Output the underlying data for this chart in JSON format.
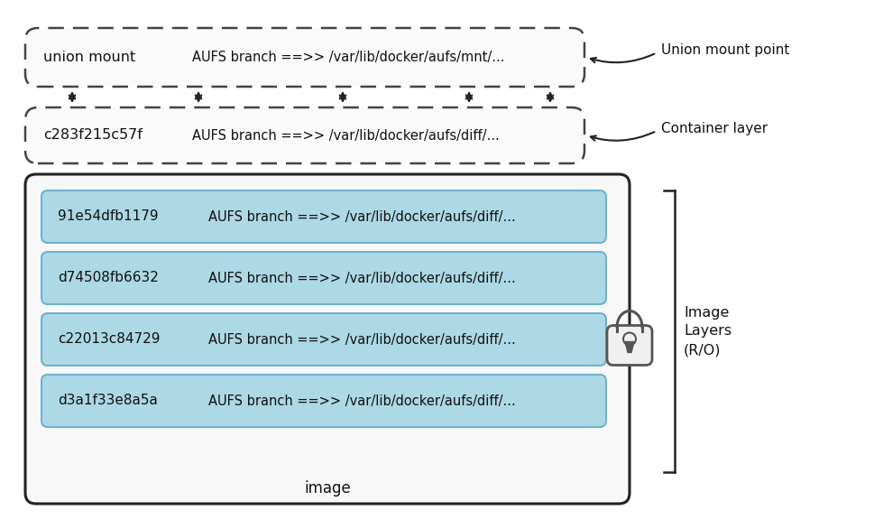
{
  "bg_color": "#ffffff",
  "union_mount_label": "union mount",
  "union_mount_path": "AUFS branch ==>> /var/lib/docker/aufs/mnt/...",
  "union_mount_point_label": "Union mount point",
  "container_id": "c283f215c57f",
  "container_path": "AUFS branch ==>> /var/lib/docker/aufs/diff/...",
  "container_layer_label": "Container layer",
  "image_layers": [
    {
      "id": "91e54dfb1179",
      "path": "AUFS branch ==>> /var/lib/docker/aufs/diff/..."
    },
    {
      "id": "d74508fb6632",
      "path": "AUFS branch ==>> /var/lib/docker/aufs/diff/..."
    },
    {
      "id": "c22013c84729",
      "path": "AUFS branch ==>> /var/lib/docker/aufs/diff/..."
    },
    {
      "id": "d3a1f33e8a5a",
      "path": "AUFS branch ==>> /var/lib/docker/aufs/diff/..."
    }
  ],
  "image_label": "image",
  "image_layers_label": "Image\nLayers\n(R/O)",
  "layer_fill_color": "#add8e6",
  "layer_edge_color": "#6ab0cc",
  "outer_box_color": "#222222",
  "dashed_box_color": "#444444",
  "arrow_color": "#222222",
  "font_color": "#111111",
  "lock_color": "#555555",
  "lock_face": "#f0f0f0"
}
